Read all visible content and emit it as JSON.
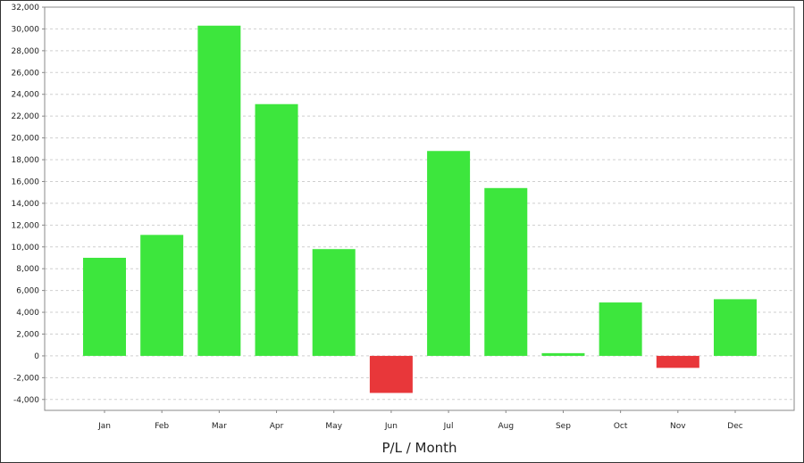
{
  "chart_data": {
    "type": "bar",
    "title": "",
    "xlabel": "P/L / Month",
    "ylabel": "",
    "categories": [
      "Jan",
      "Feb",
      "Mar",
      "Apr",
      "May",
      "Jun",
      "Jul",
      "Aug",
      "Sep",
      "Oct",
      "Nov",
      "Dec"
    ],
    "values": [
      9000,
      11100,
      30300,
      23100,
      9800,
      -3400,
      18800,
      15400,
      250,
      4900,
      -1100,
      5200
    ],
    "ylim": [
      -5000,
      32000
    ],
    "yticks": [
      -4000,
      -2000,
      0,
      2000,
      4000,
      6000,
      8000,
      10000,
      12000,
      14000,
      16000,
      18000,
      20000,
      22000,
      24000,
      26000,
      28000,
      30000,
      32000
    ],
    "ytick_labels": [
      "-4,000",
      "-2,000",
      "0",
      "2,000",
      "4,000",
      "6,000",
      "8,000",
      "10,000",
      "12,000",
      "14,000",
      "16,000",
      "18,000",
      "20,000",
      "22,000",
      "24,000",
      "26,000",
      "28,000",
      "30,000",
      "32,000"
    ],
    "grid": true,
    "legend": "none",
    "colors": {
      "positive": "#3de63d",
      "negative": "#e8373a",
      "grid": "#cfcfcf",
      "axis": "#888888"
    }
  }
}
